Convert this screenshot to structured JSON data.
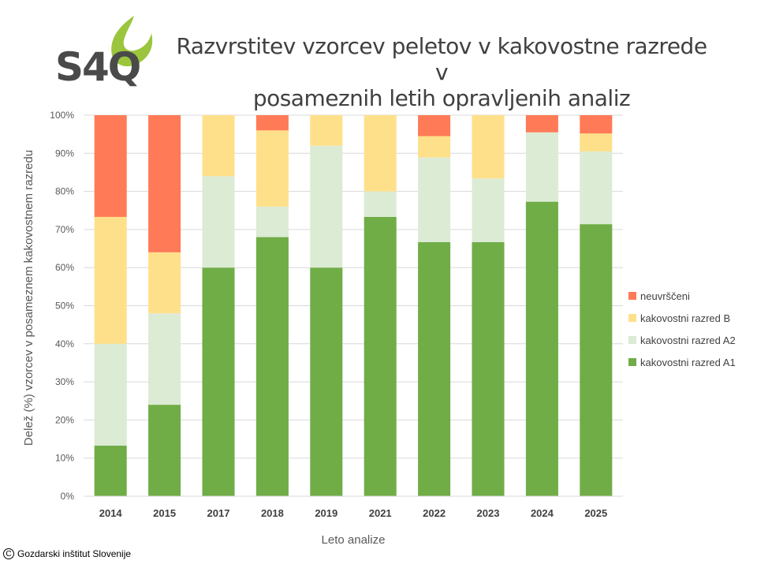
{
  "logo_text": "S4Q",
  "footer": {
    "copyright_symbol": "C",
    "text": "Gozdarski inštitut Slovenije"
  },
  "chart_data": {
    "type": "bar",
    "stacked": true,
    "title_line1": "Razvrstitev vzorcev peletov v kakovostne razrede v",
    "title_line2": "posameznih letih opravljenih analiz",
    "xlabel": "Leto analize",
    "ylabel": "Delež (%) vzorcev v posameznem kakovostnem razredu",
    "ylim": [
      0,
      100
    ],
    "yticks": [
      "0%",
      "10%",
      "20%",
      "30%",
      "40%",
      "50%",
      "60%",
      "70%",
      "80%",
      "90%",
      "100%"
    ],
    "grid": true,
    "legend_position": "right",
    "categories": [
      "2014",
      "2015",
      "2017",
      "2018",
      "2019",
      "2021",
      "2022",
      "2023",
      "2024",
      "2025"
    ],
    "series": [
      {
        "name": "kakovostni razred A1",
        "color": "#70AD47",
        "values": [
          13.3,
          24,
          60,
          68,
          60,
          73.3,
          66.7,
          66.7,
          77.3,
          71.4
        ]
      },
      {
        "name": "kakovostni razred A2",
        "color": "#DCEBD4",
        "values": [
          26.7,
          24,
          24,
          8,
          32,
          6.7,
          22.2,
          16.7,
          18.2,
          19.1
        ]
      },
      {
        "name": "kakovostni razred B",
        "color": "#FFE08A",
        "values": [
          33.3,
          16,
          16,
          20,
          8,
          20,
          5.6,
          16.6,
          0,
          4.7
        ]
      },
      {
        "name": "neuvrščeni",
        "color": "#FF7B57",
        "values": [
          26.7,
          36,
          0,
          4,
          0,
          0,
          5.5,
          0,
          4.5,
          4.8
        ]
      }
    ],
    "legend_order": [
      3,
      2,
      1,
      0
    ]
  }
}
